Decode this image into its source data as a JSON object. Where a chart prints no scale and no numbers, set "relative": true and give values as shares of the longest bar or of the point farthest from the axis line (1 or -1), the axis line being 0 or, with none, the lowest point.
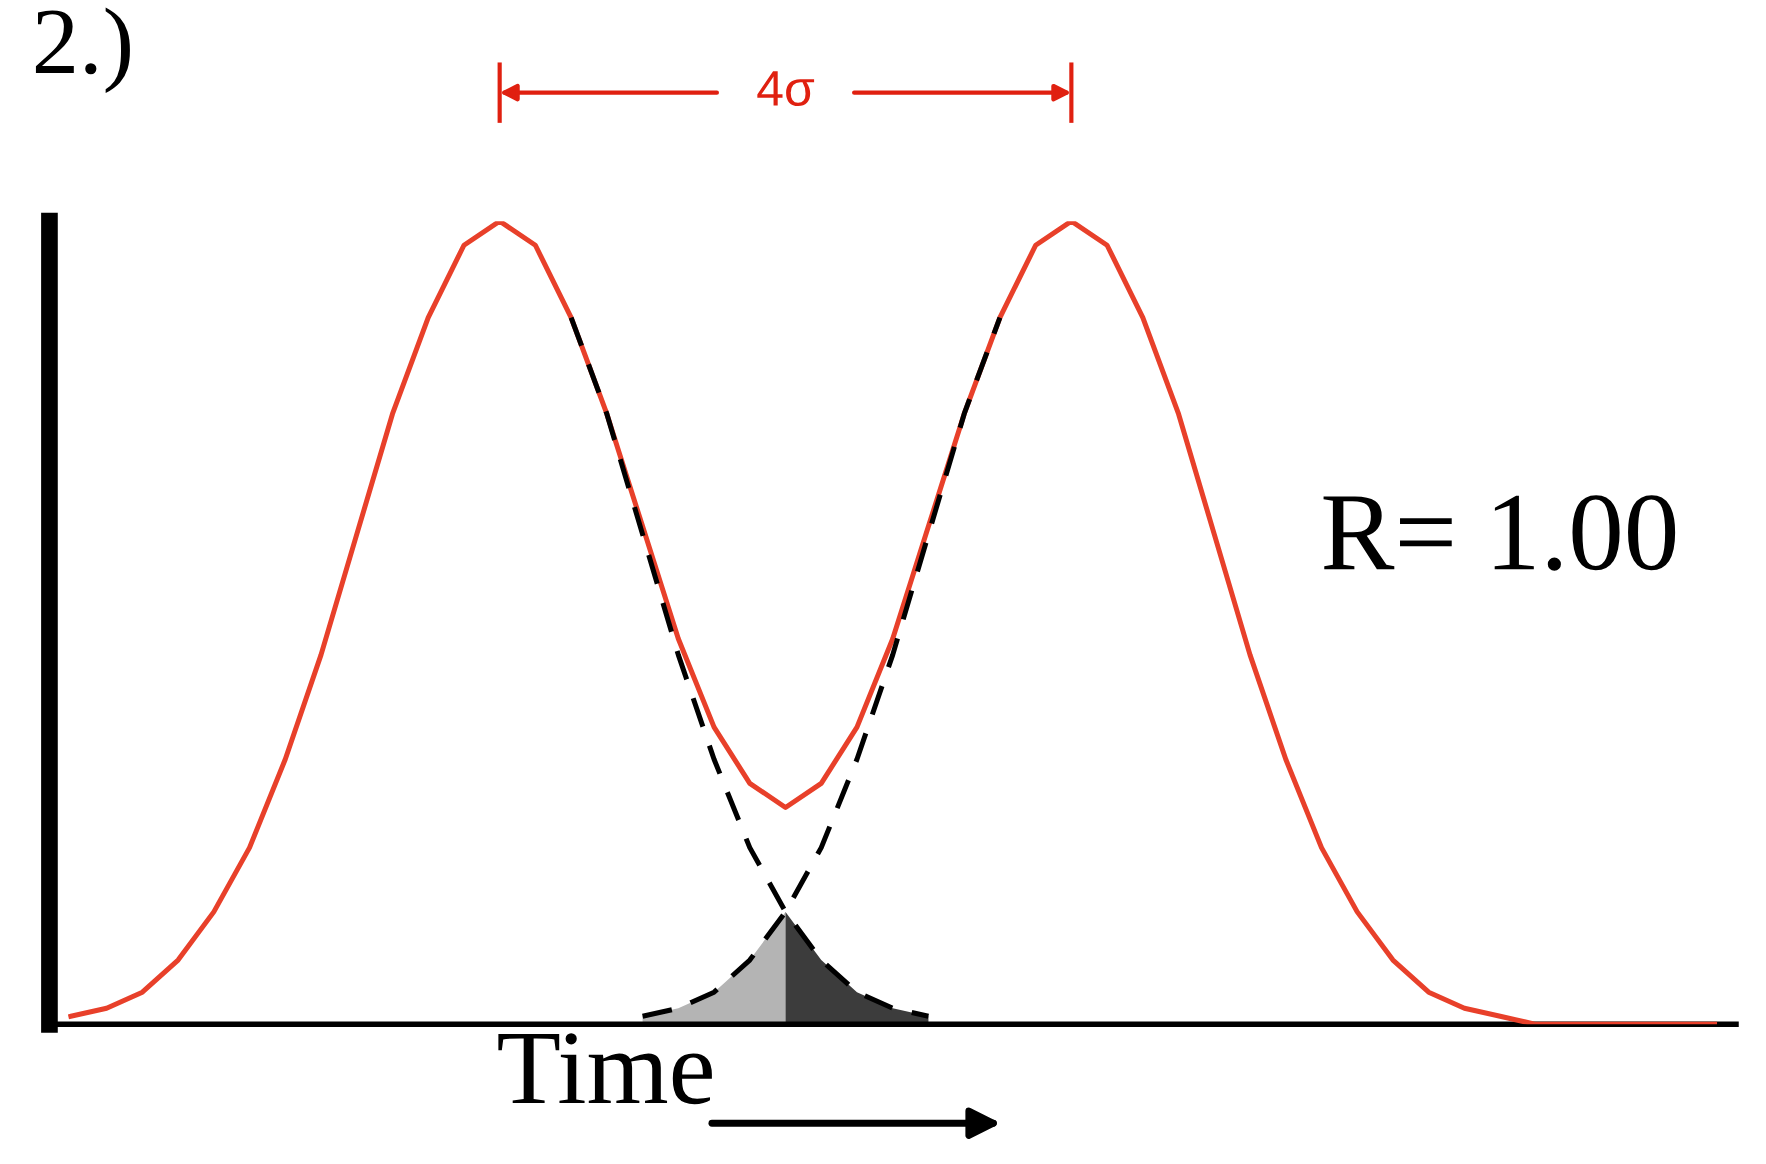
{
  "chart_data": {
    "type": "line",
    "relative": true,
    "xlabel": "Time",
    "marker": "none",
    "categories": [
      null,
      null,
      null,
      null,
      null,
      null,
      null,
      null,
      null,
      null,
      null,
      null,
      null,
      null,
      null,
      null,
      null,
      null,
      null,
      null,
      null,
      null,
      null,
      null,
      null,
      null,
      null,
      null,
      null,
      null,
      null,
      null,
      null,
      null,
      null,
      null,
      null,
      null,
      null,
      null,
      null,
      null,
      null,
      null,
      null,
      null,
      null
    ],
    "series": [
      {
        "type": "area",
        "color": "#b4b4b4",
        "values": [
          null,
          null,
          null,
          null,
          null,
          null,
          null,
          null,
          null,
          null,
          null,
          null,
          null,
          null,
          null,
          null,
          0.01,
          0.02,
          0.04,
          0.08,
          0.14,
          null,
          null,
          null,
          null,
          null,
          null,
          null,
          null,
          null,
          null,
          null,
          null,
          null,
          null,
          null,
          null,
          null,
          null,
          null,
          null,
          null,
          null,
          null,
          null,
          null,
          null
        ]
      },
      {
        "type": "area",
        "color": "#3c3c3c",
        "values": [
          null,
          null,
          null,
          null,
          null,
          null,
          null,
          null,
          null,
          null,
          null,
          null,
          null,
          null,
          null,
          null,
          null,
          null,
          null,
          null,
          0.14,
          0.08,
          0.04,
          0.02,
          0.01,
          null,
          null,
          null,
          null,
          null,
          null,
          null,
          null,
          null,
          null,
          null,
          null,
          null,
          null,
          null,
          null,
          null,
          null,
          null,
          null,
          null,
          null
        ]
      },
      {
        "color": "#e8402a",
        "line_style": "solid",
        "values": [
          0.01,
          0.02,
          0.04,
          0.08,
          0.14,
          0.22,
          0.33,
          0.46,
          0.61,
          0.76,
          0.88,
          0.97,
          1.0,
          0.97,
          0.88,
          0.76,
          0.62,
          0.48,
          0.37,
          0.3,
          0.27,
          0.3,
          0.37,
          0.48,
          0.62,
          0.76,
          0.88,
          0.97,
          1.0,
          0.97,
          0.88,
          0.76,
          0.61,
          0.46,
          0.33,
          0.22,
          0.14,
          0.08,
          0.04,
          0.02,
          0.01,
          0,
          0,
          0,
          0,
          0,
          0
        ]
      },
      {
        "color": "#000000",
        "line_style": "dashed",
        "values": [
          null,
          null,
          null,
          null,
          null,
          null,
          null,
          null,
          null,
          null,
          null,
          null,
          null,
          null,
          0.88,
          0.76,
          0.61,
          0.46,
          0.33,
          0.22,
          0.14,
          0.08,
          0.04,
          0.02,
          0.01,
          null,
          null,
          null,
          null,
          null,
          null,
          null,
          null,
          null,
          null,
          null,
          null,
          null,
          null,
          null,
          null,
          null,
          null,
          null,
          null,
          null,
          null
        ]
      },
      {
        "color": "#000000",
        "line_style": "dashed",
        "values": [
          null,
          null,
          null,
          null,
          null,
          null,
          null,
          null,
          null,
          null,
          null,
          null,
          null,
          null,
          null,
          null,
          0.01,
          0.02,
          0.04,
          0.08,
          0.14,
          0.22,
          0.33,
          0.46,
          0.61,
          0.76,
          0.88,
          null,
          null,
          null,
          null,
          null,
          null,
          null,
          null,
          null,
          null,
          null,
          null,
          null,
          null,
          null,
          null,
          null,
          null,
          null,
          null
        ]
      }
    ],
    "annotations": [
      "2.)",
      "4σ",
      "R= 1.00"
    ]
  }
}
